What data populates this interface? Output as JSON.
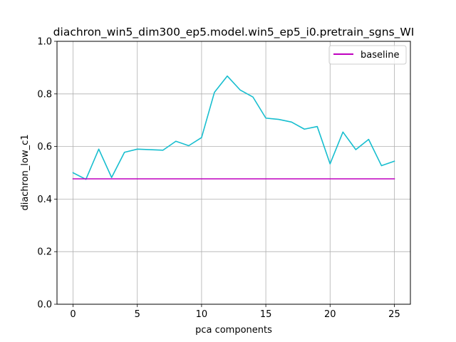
{
  "chart_data": {
    "type": "line",
    "title": "diachron_win5_dim300_ep5.model.win5_ep5_i0.pretrain_sgns_WI",
    "xlabel": "pca components",
    "ylabel": "diachron_low_c1",
    "xlim": [
      -1.25,
      26.25
    ],
    "ylim": [
      0.0,
      1.0
    ],
    "xticks": [
      0,
      5,
      10,
      15,
      20,
      25
    ],
    "xtick_labels": [
      "0",
      "5",
      "10",
      "15",
      "20",
      "25"
    ],
    "yticks": [
      0.0,
      0.2,
      0.4,
      0.6,
      0.8,
      1.0
    ],
    "ytick_labels": [
      "0.0",
      "0.2",
      "0.4",
      "0.6",
      "0.8",
      "1.0"
    ],
    "grid": true,
    "legend_position": "top-right",
    "series": [
      {
        "color": "#17becf",
        "x": [
          0,
          1,
          2,
          3,
          4,
          5,
          6,
          7,
          8,
          9,
          10,
          11,
          12,
          13,
          14,
          15,
          16,
          17,
          18,
          19,
          20,
          21,
          22,
          23,
          24,
          25
        ],
        "values": [
          0.5,
          0.475,
          0.59,
          0.482,
          0.578,
          0.59,
          0.588,
          0.586,
          0.62,
          0.603,
          0.634,
          0.806,
          0.868,
          0.815,
          0.788,
          0.708,
          0.703,
          0.693,
          0.666,
          0.676,
          0.534,
          0.655,
          0.588,
          0.627,
          0.527,
          0.544
        ]
      },
      {
        "name": "baseline",
        "color": "#bf00bf",
        "x": [
          0,
          1,
          2,
          3,
          4,
          5,
          6,
          7,
          8,
          9,
          10,
          11,
          12,
          13,
          14,
          15,
          16,
          17,
          18,
          19,
          20,
          21,
          22,
          23,
          24,
          25
        ],
        "values": [
          0.477,
          0.477,
          0.477,
          0.477,
          0.477,
          0.477,
          0.477,
          0.477,
          0.477,
          0.477,
          0.477,
          0.477,
          0.477,
          0.477,
          0.477,
          0.477,
          0.477,
          0.477,
          0.477,
          0.477,
          0.477,
          0.477,
          0.477,
          0.477,
          0.477,
          0.477
        ]
      }
    ]
  }
}
